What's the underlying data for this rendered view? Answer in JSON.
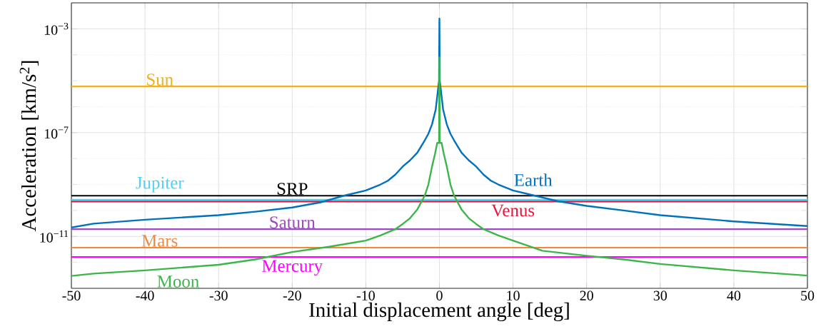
{
  "chart_data": {
    "type": "line",
    "xlabel": "Initial displacement angle [deg]",
    "ylabel": "Acceleration [km/s$^{2}$]",
    "log": "y",
    "xlim": [
      -50,
      50
    ],
    "ylim": [
      1e-13,
      0.01
    ],
    "xticks": [
      -50,
      -40,
      -30,
      -20,
      -10,
      0,
      10,
      20,
      30,
      40,
      50
    ],
    "yticks": [
      {
        "value": 1e-12,
        "label": null
      },
      {
        "value": 1e-11,
        "label": "10$^{−11}$"
      },
      {
        "value": 1e-10,
        "label": null
      },
      {
        "value": 1e-09,
        "label": null
      },
      {
        "value": 1e-08,
        "label": null
      },
      {
        "value": 1e-07,
        "label": "10$^{−7}$"
      },
      {
        "value": 1e-06,
        "label": null
      },
      {
        "value": 1e-05,
        "label": null
      },
      {
        "value": 0.0001,
        "label": null
      },
      {
        "value": 0.001,
        "label": "10$^{−3}$"
      }
    ],
    "grid": true,
    "marker": "none",
    "line_style": "solid",
    "series": [
      {
        "name": "Earth",
        "color": "#0072bd",
        "x": [
          -50,
          -47,
          -40,
          -30,
          -25,
          -20,
          -16,
          -13,
          -10,
          -8,
          -7,
          -6,
          -5,
          -4,
          -3,
          -2,
          -1.5,
          -1,
          -0.5,
          -0.05,
          0,
          0.05,
          0.5,
          1,
          1.5,
          2,
          3,
          4,
          5,
          6,
          7,
          8,
          10,
          13,
          16,
          20,
          25,
          30,
          40,
          50
        ],
        "values": [
          2.2e-11,
          3.1e-11,
          4.4e-11,
          6.6e-11,
          9e-11,
          1.3e-10,
          2.1e-10,
          3.7e-10,
          5.9e-10,
          1e-09,
          1.4e-09,
          2.4e-09,
          4.9e-09,
          8.5e-09,
          1.7e-08,
          5e-08,
          9e-08,
          2.1e-07,
          7.9e-07,
          1e-05,
          0.0025,
          1e-05,
          7.9e-07,
          2.1e-07,
          9e-08,
          5e-08,
          1.7e-08,
          8.5e-09,
          4.9e-09,
          2.4e-09,
          1.4e-09,
          1e-09,
          5.9e-10,
          3.7e-10,
          2.3e-10,
          1.5e-10,
          1e-10,
          6.6e-11,
          3.8e-11,
          2.5e-11
        ]
      },
      {
        "name": "Moon",
        "color": "#3db54a",
        "x": [
          -50,
          -47,
          -40,
          -30,
          -25,
          -20,
          -15,
          -10,
          -8,
          -6,
          -5,
          -4,
          -3,
          -2,
          -1.5,
          -1,
          -0.6,
          -0.3,
          -0.05,
          0,
          0.05,
          0.3,
          0.6,
          1,
          1.5,
          2,
          3,
          4,
          5,
          6,
          8,
          10,
          14,
          20,
          25,
          30,
          40,
          50
        ],
        "values": [
          3e-13,
          3.7e-13,
          4.9e-13,
          8.1e-13,
          1.3e-12,
          2.5e-12,
          4e-12,
          6.9e-12,
          1.1e-11,
          1.9e-11,
          3e-11,
          5e-11,
          1.1e-10,
          3.7e-10,
          1e-09,
          5e-09,
          1.5e-08,
          4e-08,
          4e-08,
          8e-05,
          4e-08,
          4e-08,
          1.5e-08,
          5e-09,
          1e-09,
          3.7e-10,
          1.1e-10,
          5e-11,
          3e-11,
          1.9e-11,
          1.1e-11,
          6.9e-12,
          2.8e-12,
          1.8e-12,
          1.3e-12,
          8.7e-13,
          4.9e-13,
          3.1e-13
        ]
      }
    ],
    "ref_lines": [
      {
        "axis": "y",
        "value": 6e-06,
        "label": "Sun",
        "color": "#edb120"
      },
      {
        "axis": "y",
        "value": 3.7e-10,
        "label": "SRP",
        "color": "#000000"
      },
      {
        "axis": "y",
        "value": 2.6e-10,
        "label": "Jupiter",
        "color": "#4dd2f6"
      },
      {
        "axis": "y",
        "value": 2.2e-10,
        "label": "Venus",
        "color": "#e8173a"
      },
      {
        "axis": "y",
        "value": 1.9e-11,
        "label": "Saturn",
        "color": "#9b4bbd"
      },
      {
        "axis": "y",
        "value": 3.7e-12,
        "label": "Mars",
        "color": "#f5873a"
      },
      {
        "axis": "y",
        "value": 1.6e-12,
        "label": "Mercury",
        "color": "#ff00ff"
      }
    ]
  }
}
